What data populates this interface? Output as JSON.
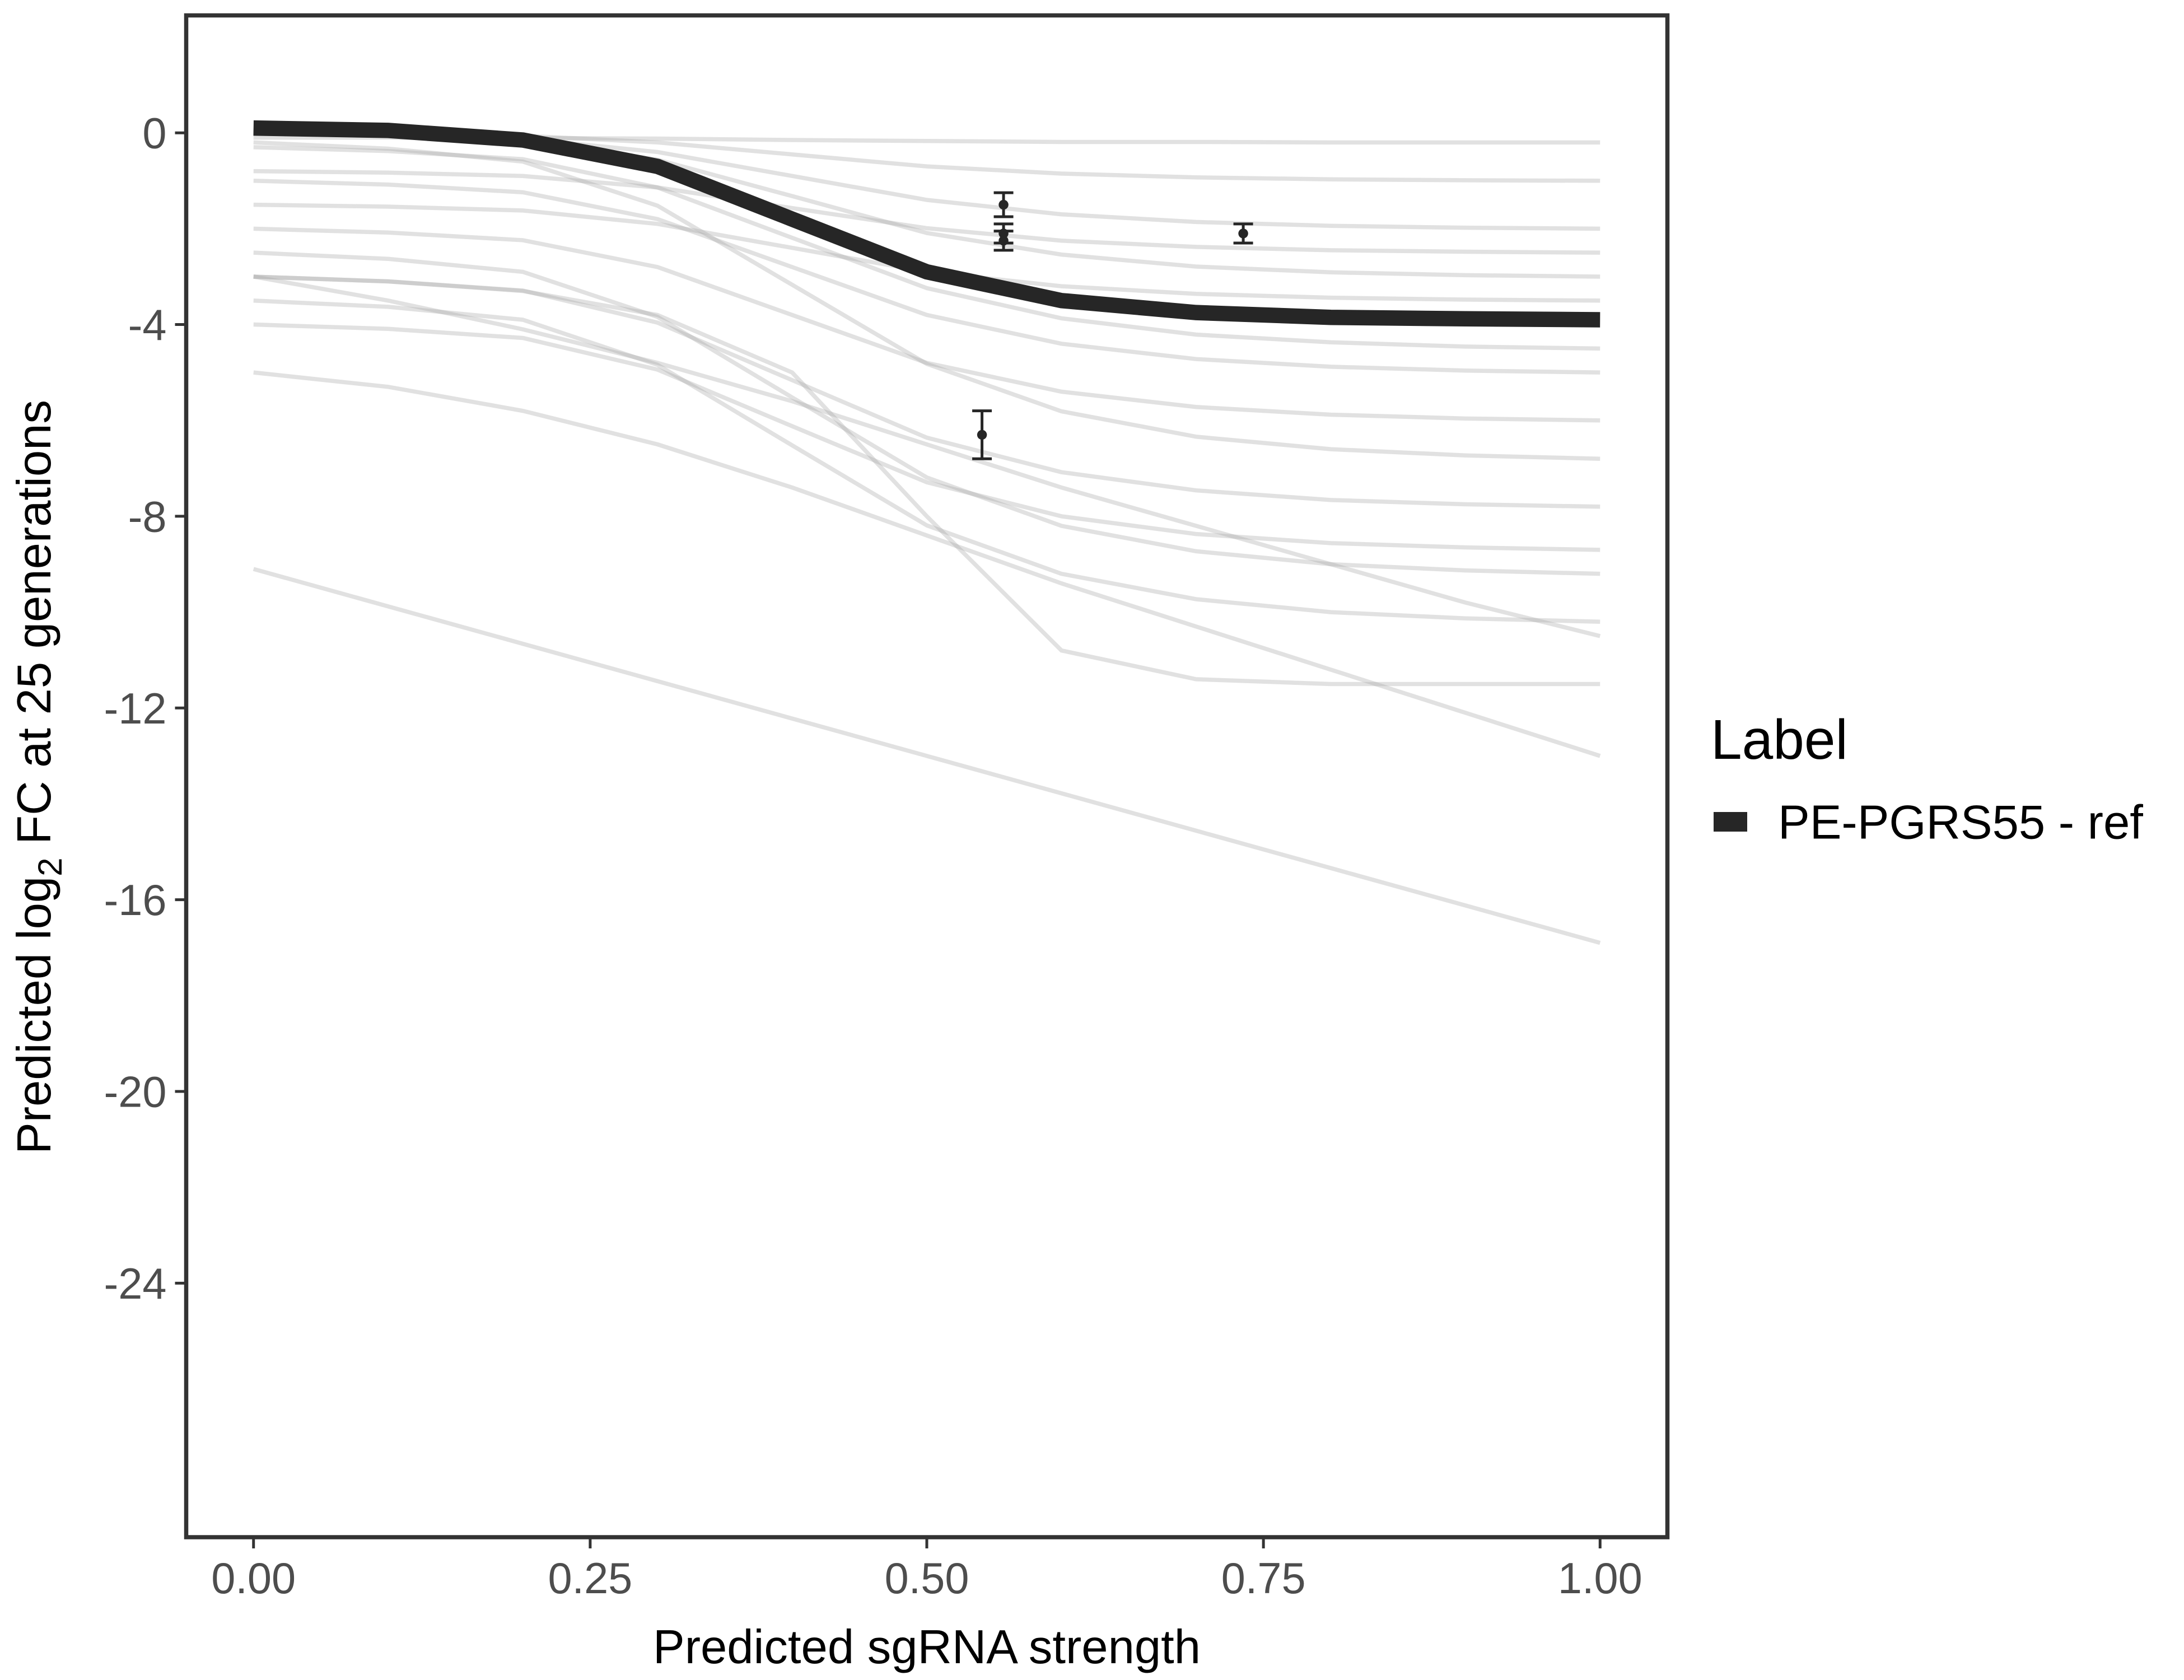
{
  "chart_data": {
    "type": "line",
    "x_label": "Predicted sgRNA strength",
    "y_label": [
      "Predicted  log",
      "2",
      " FC at 25 generations"
    ],
    "xlim": [
      -0.05,
      1.05
    ],
    "ylim": [
      -29.3,
      2.45
    ],
    "xticks": [
      {
        "value": 0,
        "label": "0.00"
      },
      {
        "value": 0.25,
        "label": "0.25"
      },
      {
        "value": 0.5,
        "label": "0.50"
      },
      {
        "value": 0.75,
        "label": "0.75"
      },
      {
        "value": 1,
        "label": "1.00"
      }
    ],
    "yticks": [
      0,
      -4,
      -8,
      -12,
      -16,
      -20,
      -24
    ],
    "legend_title": "Label",
    "legend_position": "right",
    "x": [
      0,
      0.1,
      0.2,
      0.3,
      0.4,
      0.5,
      0.6,
      0.7,
      0.8,
      0.9,
      1.0
    ],
    "series": [
      {
        "name": "PE-PGRS55 - ref",
        "color": "#262626",
        "values": [
          0.1,
          0.05,
          -0.15,
          -0.7,
          -1.8,
          -2.9,
          -3.5,
          -3.75,
          -3.85,
          -3.88,
          -3.9
        ]
      }
    ],
    "background_color": "#aaaaaa",
    "background_curves": [
      [
        -9.1,
        -9.88,
        -10.66,
        -11.44,
        -12.22,
        -13.0,
        -13.78,
        -14.56,
        -15.34,
        -16.12,
        -16.9
      ],
      [
        -5.0,
        -5.3,
        -5.8,
        -6.5,
        -7.4,
        -8.4,
        -9.4,
        -10.3,
        -11.2,
        -12.1,
        -13.0
      ],
      [
        -3.0,
        -3.1,
        -3.3,
        -3.8,
        -5.0,
        -8.0,
        -10.8,
        -11.4,
        -11.5,
        -11.5,
        -11.5
      ],
      [
        -0.1,
        -0.1,
        -0.11,
        -0.12,
        -0.15,
        -0.17,
        -0.19,
        -0.19,
        -0.2,
        -0.2,
        -0.2
      ],
      [
        0,
        -0.02,
        -0.06,
        -0.2,
        -0.45,
        -0.7,
        -0.85,
        -0.93,
        -0.97,
        -0.99,
        -1.0
      ],
      [
        0,
        -0.04,
        -0.12,
        -0.4,
        -0.9,
        -1.4,
        -1.7,
        -1.86,
        -1.94,
        -1.98,
        -2.0
      ],
      [
        0.05,
        -0.01,
        -0.13,
        -0.56,
        -1.32,
        -2.09,
        -2.54,
        -2.79,
        -2.91,
        -2.97,
        -3.0
      ],
      [
        -0.3,
        -0.38,
        -0.55,
        -1.14,
        -2.19,
        -3.24,
        -3.87,
        -4.21,
        -4.37,
        -4.46,
        -4.5
      ],
      [
        -1,
        -1.08,
        -1.24,
        -1.8,
        -2.8,
        -3.8,
        -4.4,
        -4.72,
        -4.88,
        -4.96,
        -5
      ],
      [
        -1.5,
        -1.54,
        -1.62,
        -1.9,
        -2.4,
        -2.9,
        -3.2,
        -3.36,
        -3.44,
        -3.48,
        -3.5
      ],
      [
        -2,
        -2.08,
        -2.24,
        -2.8,
        -3.8,
        -4.8,
        -5.4,
        -5.72,
        -5.88,
        -5.96,
        -6
      ],
      [
        -3,
        -3.1,
        -3.29,
        -3.96,
        -5.16,
        -6.36,
        -7.08,
        -7.46,
        -7.66,
        -7.75,
        -7.8
      ],
      [
        -2.5,
        -2.63,
        -2.9,
        -3.84,
        -5.52,
        -7.19,
        -8.2,
        -8.73,
        -9.0,
        -9.13,
        -9.2
      ],
      [
        -3.5,
        -3.63,
        -3.9,
        -4.84,
        -6.52,
        -8.19,
        -9.2,
        -9.73,
        -10.0,
        -10.13,
        -10.2
      ],
      [
        -4,
        -4.09,
        -4.28,
        -4.94,
        -6.12,
        -7.29,
        -8.0,
        -8.37,
        -8.56,
        -8.65,
        -8.7
      ],
      [
        -3,
        -3.5,
        -4.1,
        -4.8,
        -5.6,
        -6.5,
        -7.4,
        -8.2,
        -9.0,
        -9.8,
        -10.5
      ],
      [
        -0.8,
        -0.83,
        -0.9,
        -1.14,
        -1.57,
        -1.99,
        -2.25,
        -2.38,
        -2.45,
        -2.48,
        -2.5
      ],
      [
        -0.2,
        -0.33,
        -0.6,
        -1.52,
        -3.17,
        -4.82,
        -5.81,
        -6.34,
        -6.6,
        -6.73,
        -6.8
      ]
    ],
    "points": {
      "color": "#262626",
      "x": [
        0.557,
        0.557,
        0.557,
        0.735,
        0.541
      ],
      "values": [
        -1.5,
        -2.1,
        -2.25,
        -2.1,
        -6.3
      ],
      "errors": [
        0.25,
        0.2,
        0.2,
        0.2,
        0.5
      ]
    }
  }
}
